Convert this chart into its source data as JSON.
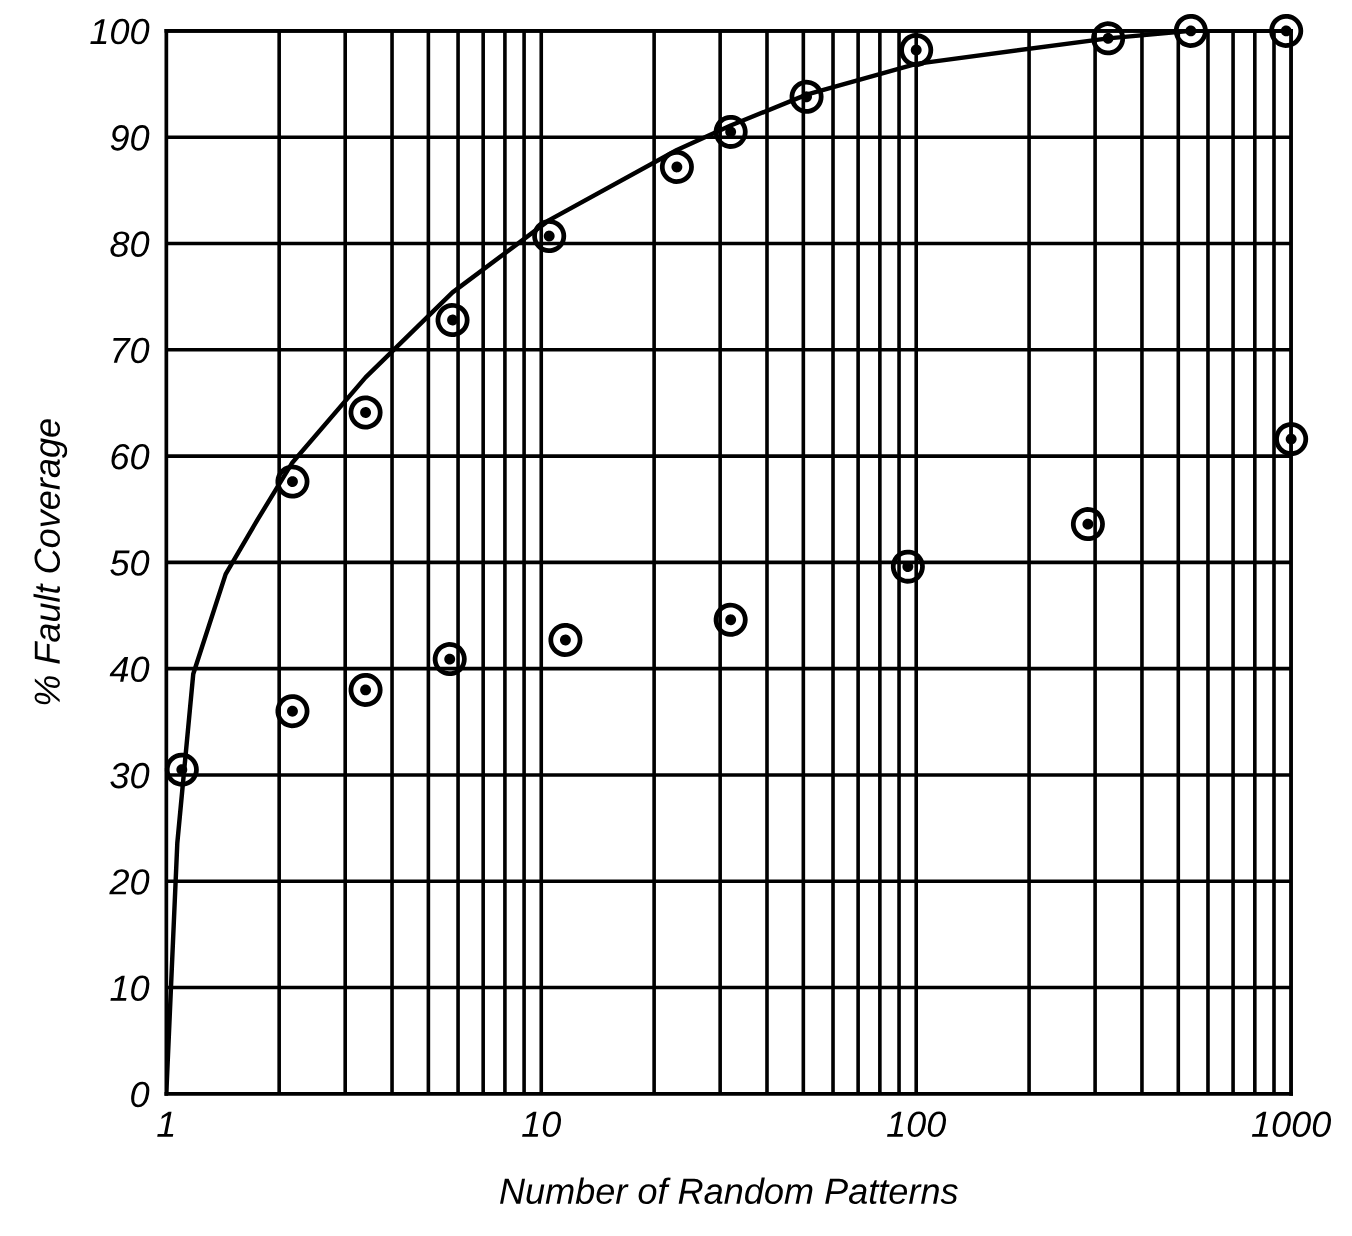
{
  "chart_data": {
    "type": "scatter",
    "xlabel": "Number of Random Patterns",
    "ylabel": "% Fault Coverage",
    "log": "x",
    "grid": true,
    "marker": "circle",
    "xlim": [
      1,
      1000
    ],
    "ylim": [
      0,
      100
    ],
    "xticks": [
      1,
      {
        "value": 2,
        "label": null
      },
      {
        "value": 3,
        "label": null
      },
      {
        "value": 4,
        "label": null
      },
      {
        "value": 5,
        "label": null
      },
      {
        "value": 6,
        "label": null
      },
      {
        "value": 7,
        "label": null
      },
      {
        "value": 8,
        "label": null
      },
      {
        "value": 9,
        "label": null
      },
      10,
      {
        "value": 20,
        "label": null
      },
      {
        "value": 30,
        "label": null
      },
      {
        "value": 40,
        "label": null
      },
      {
        "value": 50,
        "label": null
      },
      {
        "value": 60,
        "label": null
      },
      {
        "value": 70,
        "label": null
      },
      {
        "value": 80,
        "label": null
      },
      {
        "value": 90,
        "label": null
      },
      100,
      {
        "value": 200,
        "label": null
      },
      {
        "value": 300,
        "label": null
      },
      {
        "value": 400,
        "label": null
      },
      {
        "value": 500,
        "label": null
      },
      {
        "value": 600,
        "label": null
      },
      {
        "value": 700,
        "label": null
      },
      {
        "value": 800,
        "label": null
      },
      {
        "value": 900,
        "label": null
      },
      1000
    ],
    "yticks": [
      0,
      10,
      20,
      30,
      40,
      50,
      60,
      70,
      80,
      90,
      100
    ],
    "series": [
      {
        "type": "line",
        "color": "#000000",
        "marker": "none",
        "x": [
          1,
          1.07,
          1.18,
          1.44,
          1.75,
          2.17,
          3.4,
          5.8,
          10.5,
          23,
          32,
          51,
          100,
          325,
          540,
          1000
        ],
        "values": [
          0,
          23.6,
          39.5,
          48.9,
          54,
          59.4,
          67.4,
          75.4,
          82.2,
          88.8,
          91.1,
          94,
          96.9,
          99.3,
          100,
          100
        ]
      },
      {
        "color": "#000000",
        "x": [
          1.1,
          2.17,
          3.4,
          5.8,
          10.5,
          23,
          32,
          51,
          100,
          325,
          540,
          970
        ],
        "values": [
          30.5,
          57.6,
          64.1,
          72.8,
          80.7,
          87.2,
          90.5,
          93.8,
          98.2,
          99.3,
          100,
          100
        ]
      },
      {
        "color": "#000000",
        "x": [
          2.17,
          3.4,
          5.7,
          11.6,
          32,
          95,
          287,
          1000
        ],
        "values": [
          36,
          38,
          40.9,
          42.7,
          44.6,
          49.6,
          53.6,
          61.6
        ]
      }
    ]
  }
}
